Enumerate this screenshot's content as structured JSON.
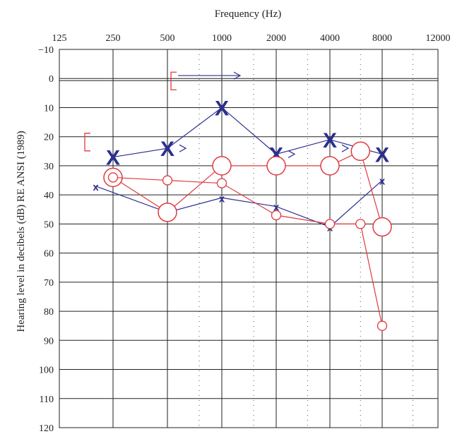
{
  "chart_data": {
    "type": "scatter",
    "title": "",
    "xlabel": "Frequency (Hz)",
    "ylabel": "Hearing level in decibels (dB) RE ANSI (1989)",
    "x_tick_labels": [
      "125",
      "250",
      "500",
      "1000",
      "2000",
      "4000",
      "8000",
      "12000"
    ],
    "y_tick_labels": [
      "−10",
      "0",
      "10",
      "20",
      "30",
      "40",
      "50",
      "60",
      "70",
      "80",
      "90",
      "100",
      "110",
      "120"
    ],
    "ylim": [
      -10,
      120
    ],
    "y_inverted": true,
    "grid": true,
    "series": [
      {
        "color": "#2b2f8f",
        "marker": "X-large",
        "points": [
          {
            "x": 250,
            "y": 27
          },
          {
            "x": 500,
            "y": 24
          },
          {
            "x": 1000,
            "y": 10
          },
          {
            "x": 2000,
            "y": 26
          },
          {
            "x": 4000,
            "y": 21
          },
          {
            "x": 8000,
            "y": 26
          }
        ]
      },
      {
        "color": "#2b2f8f",
        "marker": "x-small",
        "points": [
          {
            "x": 200,
            "y": 37
          },
          {
            "x": 500,
            "y": 46
          },
          {
            "x": 1000,
            "y": 41
          },
          {
            "x": 2000,
            "y": 44
          },
          {
            "x": 4000,
            "y": 51
          },
          {
            "x": 8000,
            "y": 35
          }
        ]
      },
      {
        "color": "#e0393e",
        "marker": "O-large",
        "points": [
          {
            "x": 250,
            "y": 34
          },
          {
            "x": 500,
            "y": 46
          },
          {
            "x": 1000,
            "y": 30
          },
          {
            "x": 2000,
            "y": 30
          },
          {
            "x": 4000,
            "y": 30
          },
          {
            "x": 6000,
            "y": 25
          },
          {
            "x": 8000,
            "y": 51
          }
        ]
      },
      {
        "color": "#e0393e",
        "marker": "o-small",
        "points": [
          {
            "x": 250,
            "y": 34
          },
          {
            "x": 500,
            "y": 35
          },
          {
            "x": 1000,
            "y": 36
          },
          {
            "x": 2000,
            "y": 47
          },
          {
            "x": 4000,
            "y": 50
          },
          {
            "x": 6000,
            "y": 50
          },
          {
            "x": 8000,
            "y": 85
          }
        ]
      }
    ],
    "annotations": [
      {
        "symbol": "[",
        "color": "#e0393e",
        "x": 250,
        "y": 21
      },
      {
        "symbol": ">",
        "color": "#2b2f8f",
        "x": 500,
        "y": 24
      },
      {
        "symbol": "[",
        "color": "#e0393e",
        "x": 750,
        "y": 0
      },
      {
        "symbol": ">",
        "color": "#2b2f8f",
        "x": 1000,
        "y": -1
      },
      {
        "symbol": ">",
        "color": "#2b2f8f",
        "x": 2000,
        "y": 26
      },
      {
        "symbol": ">",
        "color": "#2b2f8f",
        "x": 4000,
        "y": 24
      }
    ]
  }
}
